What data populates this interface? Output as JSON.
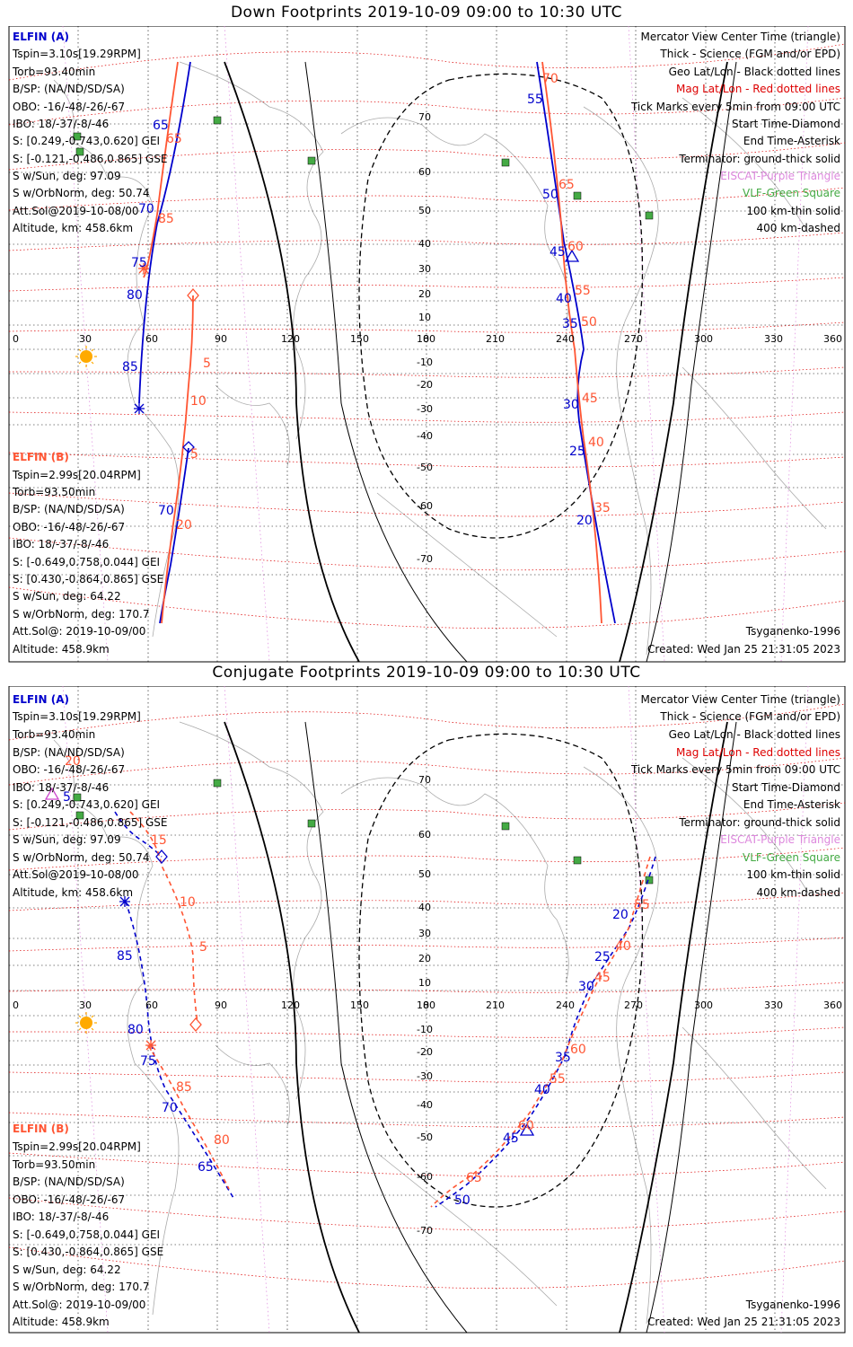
{
  "panels": [
    {
      "id": "down",
      "title": "Down Footprints 2019-10-09 09:00 to 10:30 UTC",
      "elfin_a": {
        "name": "ELFIN (A)",
        "tspin": "Tspin=3.10s[19.29RPM]",
        "torb": "Torb=93.40min",
        "bsp": "B/SP: (NA/ND/SD/SA)",
        "obo": "OBO: -16/-48/-26/-67",
        "ibo": "IBO: 18/-37/-8/-46",
        "s_gei": "S: [0.249,-0.743,0.620] GEI",
        "s_gse": "S: [-0.121,-0.486,0.865] GSE",
        "s_sun": "S w/Sun, deg: 97.09",
        "s_orb": "S w/OrbNorm, deg: 50.74",
        "attsol": "Att.Sol@2019-10-08/00",
        "alt": "Altitude, km: 458.6km"
      },
      "elfin_b": {
        "name": "ELFIN (B)",
        "tspin": "Tspin=2.99s[20.04RPM]",
        "torb": "Torb=93.50min",
        "bsp": "B/SP: (NA/ND/SD/SA)",
        "obo": "OBO: -16/-48/-26/-67",
        "ibo": "IBO: 18/-37/-8/-46",
        "s_gei": "S: [-0.649,0.758,0.044] GEI",
        "s_gse": "S: [0.430,-0.864,0.865] GSE",
        "s_sun": "S w/Sun, deg: 64.22",
        "s_orb": "S w/OrbNorm, deg: 170.7",
        "attsol": "Att.Sol@: 2019-10-09/00",
        "alt": "Altitude: 458.9km"
      },
      "legend": {
        "l1": "Mercator View Center Time (triangle)",
        "l2": "Thick - Science (FGM and/or EPD)",
        "l3": "Geo Lat/Lon - Black dotted lines",
        "l4": "Mag Lat/Lon - Red dotted lines",
        "l5": "Tick Marks every 5min from 09:00 UTC",
        "l6": "Start Time-Diamond",
        "l7": "End Time-Asterisk",
        "l8": "Terminator: ground-thick solid",
        "l9": "EISCAT-Purple Triangle",
        "l10": "VLF-Green Square",
        "l11": "100 km-thin solid",
        "l12": "400 km-dashed"
      },
      "model": "Tsyganenko-1996",
      "created": "Created: Wed Jan 25 21:31:05 2023",
      "lon_ticks": [
        "0",
        "30",
        "60",
        "90",
        "120",
        "150",
        "180",
        "210",
        "240",
        "270",
        "300",
        "330",
        "360"
      ],
      "lat_ticks": [
        "70",
        "60",
        "50",
        "40",
        "30",
        "20",
        "10",
        "0",
        "-10",
        "-20",
        "-30",
        "-40",
        "-50",
        "-60",
        "-70"
      ],
      "track_labels_a": [
        "55",
        "50",
        "45",
        "40",
        "35",
        "30",
        "25",
        "20",
        "65",
        "70",
        "75",
        "80",
        "85"
      ],
      "track_labels_b": [
        "70",
        "65",
        "60",
        "55",
        "50",
        "45",
        "40",
        "35",
        "85",
        "5",
        "10",
        "5",
        "20"
      ]
    },
    {
      "id": "conjugate",
      "title": "Conjugate Footprints 2019-10-09 09:00 to 10:30 UTC",
      "elfin_a": {
        "name": "ELFIN (A)",
        "tspin": "Tspin=3.10s[19.29RPM]",
        "torb": "Torb=93.40min",
        "bsp": "B/SP: (NA/ND/SD/SA)",
        "obo": "OBO: -16/-48/-26/-67",
        "ibo": "IBO: 18/-37/-8/-46",
        "s_gei": "S: [0.249,-0.743,0.620] GEI",
        "s_gse": "S: [-0.121,-0.486,0.865] GSE",
        "s_sun": "S w/Sun, deg: 97.09",
        "s_orb": "S w/OrbNorm, deg: 50.74",
        "attsol": "Att.Sol@2019-10-08/00",
        "alt": "Altitude, km: 458.6km"
      },
      "elfin_b": {
        "name": "ELFIN (B)",
        "tspin": "Tspin=2.99s[20.04RPM]",
        "torb": "Torb=93.50min",
        "bsp": "B/SP: (NA/ND/SD/SA)",
        "obo": "OBO: -16/-48/-26/-67",
        "ibo": "IBO: 18/-37/-8/-46",
        "s_gei": "S: [-0.649,0.758,0.044] GEI",
        "s_gse": "S: [0.430,-0.864,0.865] GSE",
        "s_sun": "S w/Sun, deg: 64.22",
        "s_orb": "S w/OrbNorm, deg: 170.7",
        "attsol": "Att.Sol@: 2019-10-09/00",
        "alt": "Altitude: 458.9km"
      },
      "legend": {
        "l1": "Mercator View Center Time (triangle)",
        "l2": "Thick - Science (FGM and/or EPD)",
        "l3": "Geo Lat/Lon - Black dotted lines",
        "l4": "Mag Lat/Lon - Red dotted lines",
        "l5": "Tick Marks every 5min from 09:00 UTC",
        "l6": "Start Time-Diamond",
        "l7": "End Time-Asterisk",
        "l8": "Terminator: ground-thick solid",
        "l9": "EISCAT-Purple Triangle",
        "l10": "VLF-Green Square",
        "l11": "100 km-thin solid",
        "l12": "400 km-dashed"
      },
      "model": "Tsyganenko-1996",
      "created": "Created: Wed Jan 25 21:31:05 2023",
      "lon_ticks": [
        "0",
        "30",
        "60",
        "90",
        "120",
        "150",
        "180",
        "210",
        "240",
        "270",
        "300",
        "330",
        "360"
      ],
      "lat_ticks": [
        "70",
        "60",
        "50",
        "40",
        "30",
        "20",
        "10",
        "0",
        "-10",
        "-20",
        "-30",
        "-40",
        "-50",
        "-60",
        "-70"
      ],
      "track_labels_a": [
        "85",
        "80",
        "75",
        "70",
        "65",
        "5",
        "20",
        "25",
        "30",
        "35",
        "40",
        "45",
        "50"
      ],
      "track_labels_b": [
        "20",
        "15",
        "10",
        "5",
        "85",
        "80",
        "55",
        "40",
        "45",
        "60",
        "55",
        "60",
        "65"
      ]
    }
  ],
  "colors": {
    "elfin_a": "#0000cc",
    "elfin_b": "#ff5533",
    "mag_grid": "#dd0000",
    "eiscat": "#dd88dd",
    "vlf": "#44aa44"
  }
}
